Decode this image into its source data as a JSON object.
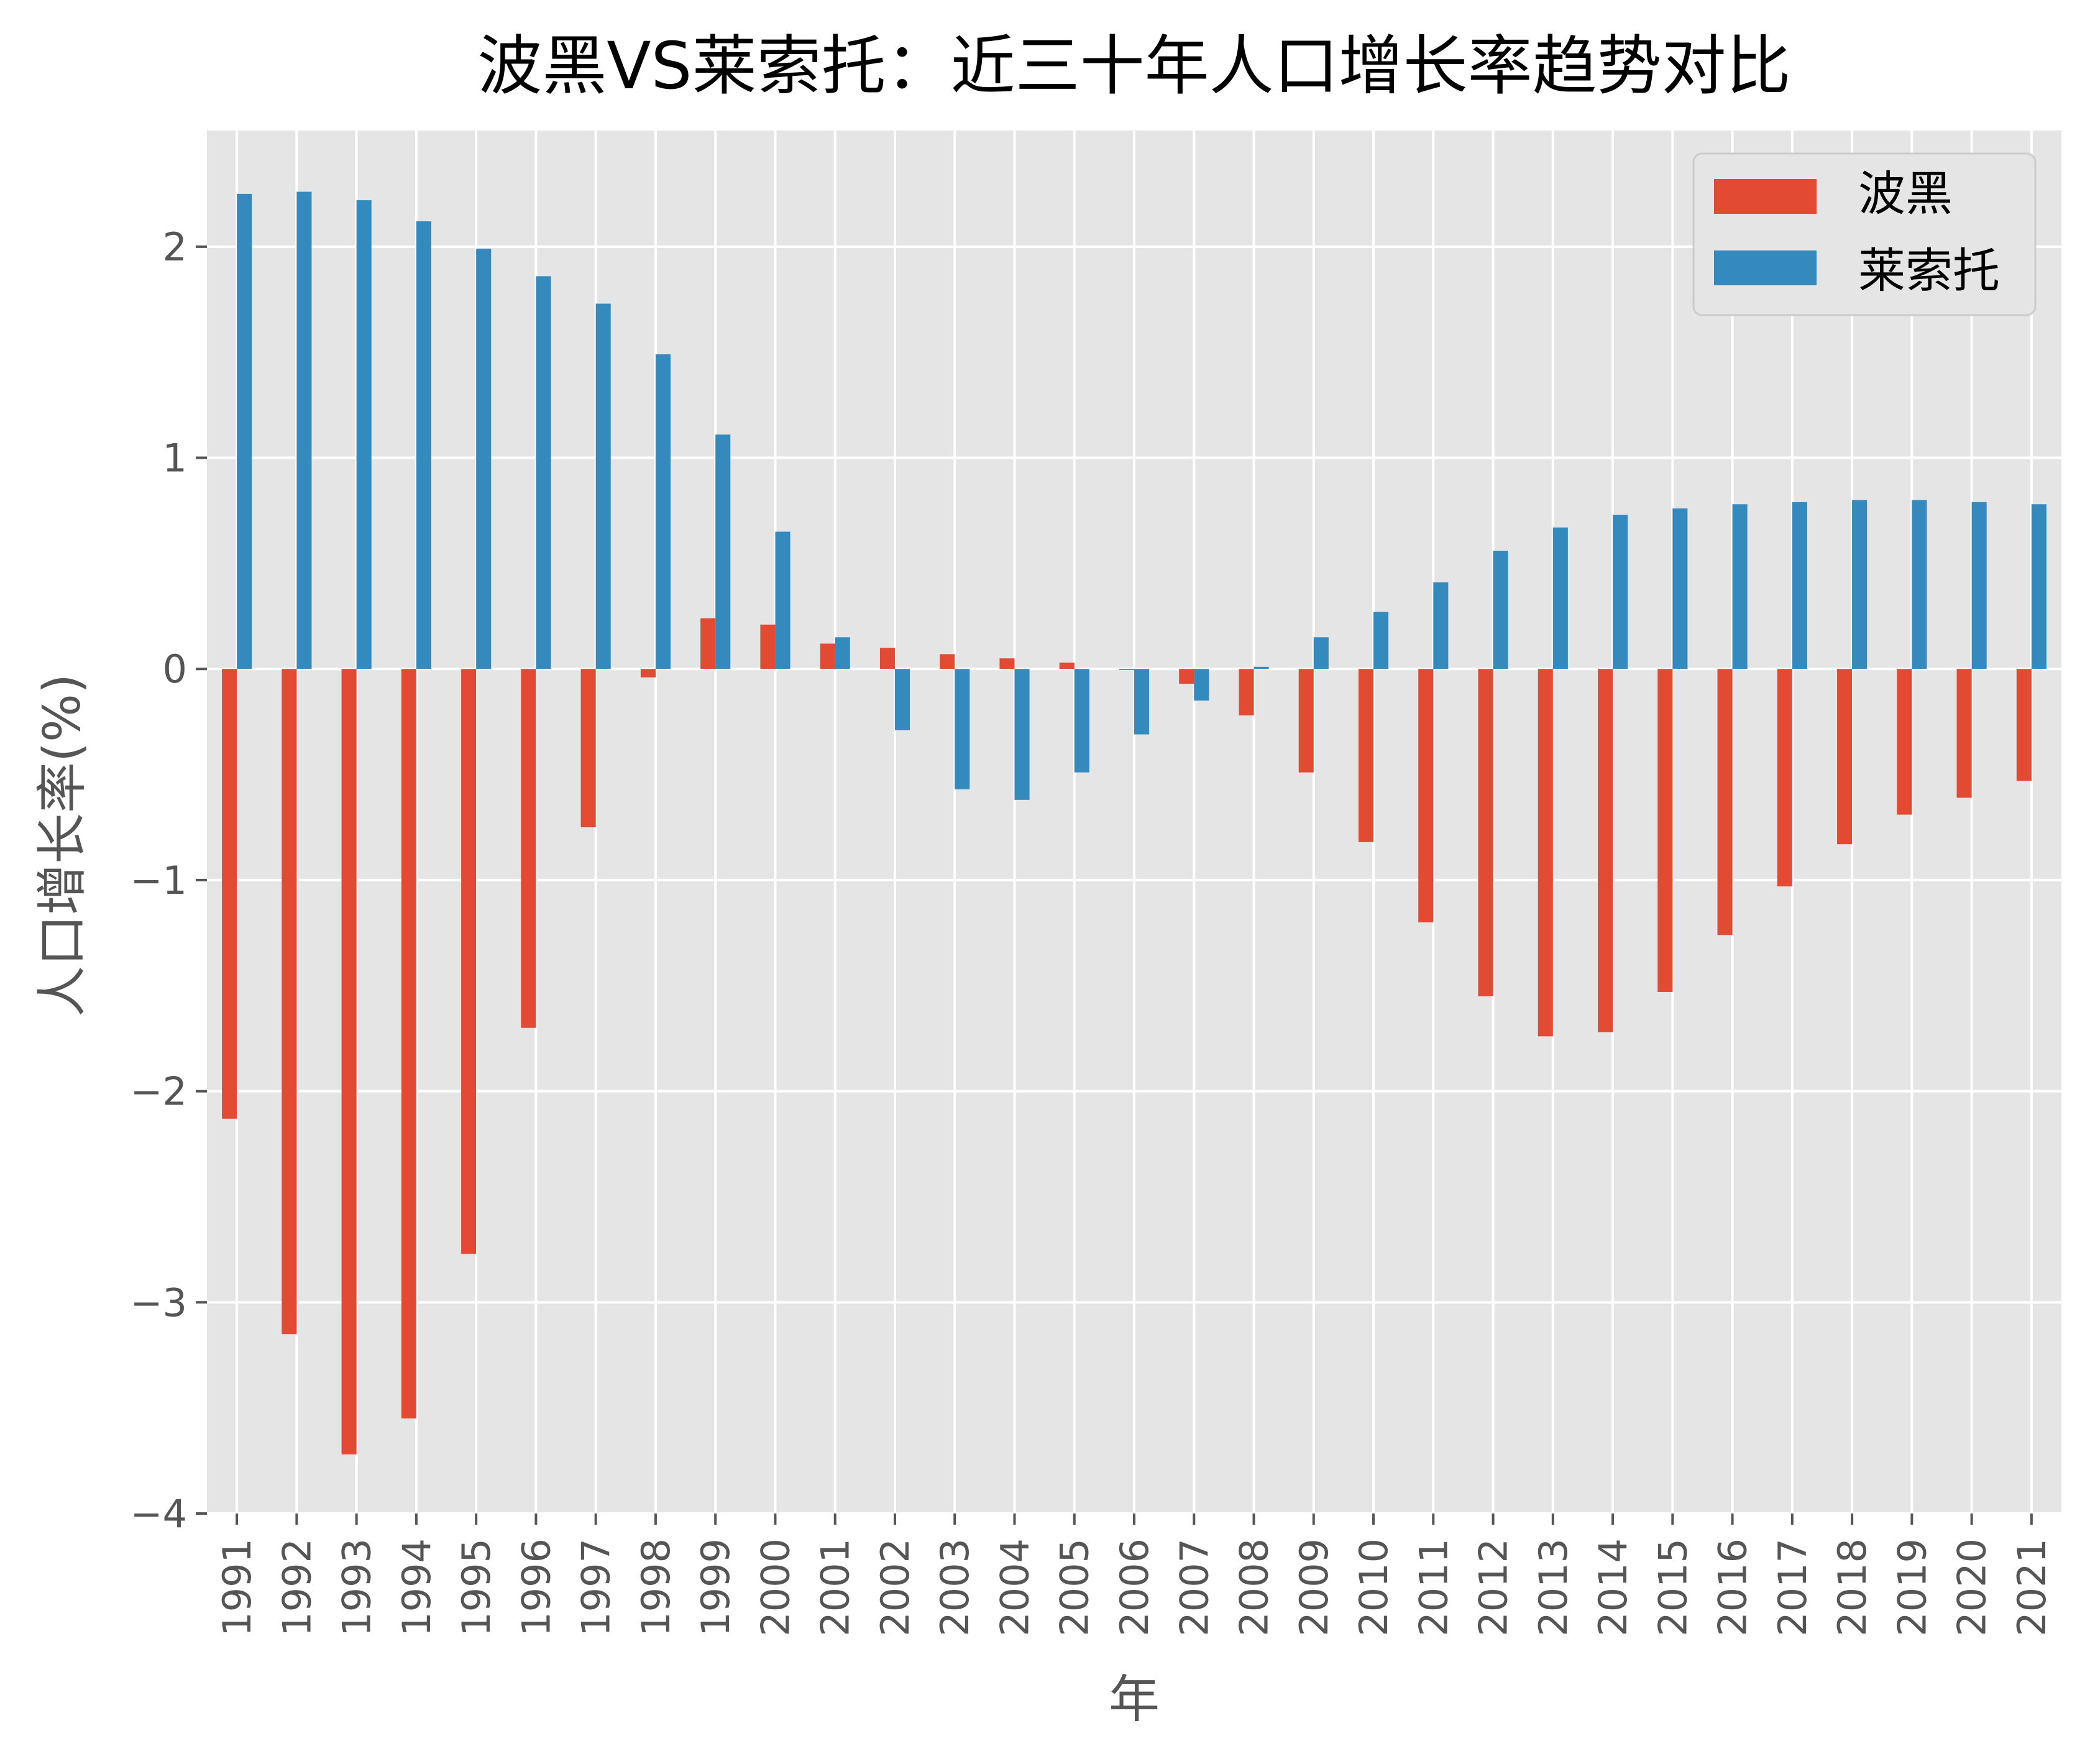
{
  "chart_data": {
    "type": "bar",
    "title": "波黑VS莱索托：近三十年人口增长率趋势对比",
    "xlabel": "年",
    "ylabel": "人口增长率(%)",
    "ylim": [
      -4,
      2.55
    ],
    "yticks": [
      -4,
      -3,
      -2,
      -1,
      0,
      1,
      2
    ],
    "grid": true,
    "legend_position": "top-right",
    "categories": [
      "1991",
      "1992",
      "1993",
      "1994",
      "1995",
      "1996",
      "1997",
      "1998",
      "1999",
      "2000",
      "2001",
      "2002",
      "2003",
      "2004",
      "2005",
      "2006",
      "2007",
      "2008",
      "2009",
      "2010",
      "2011",
      "2012",
      "2013",
      "2014",
      "2015",
      "2016",
      "2017",
      "2018",
      "2019",
      "2020",
      "2021"
    ],
    "series": [
      {
        "name": "波黑",
        "color": "#E24A33",
        "values": [
          -2.13,
          -3.15,
          -3.72,
          -3.55,
          -2.77,
          -1.7,
          -0.75,
          -0.04,
          0.24,
          0.21,
          0.12,
          0.1,
          0.07,
          0.05,
          0.03,
          -0.005,
          -0.07,
          -0.22,
          -0.49,
          -0.82,
          -1.2,
          -1.55,
          -1.74,
          -1.72,
          -1.53,
          -1.26,
          -1.03,
          -0.83,
          -0.69,
          -0.61,
          -0.53
        ]
      },
      {
        "name": "莱索托",
        "color": "#348ABD",
        "values": [
          2.25,
          2.26,
          2.22,
          2.12,
          1.99,
          1.86,
          1.73,
          1.49,
          1.11,
          0.65,
          0.15,
          -0.29,
          -0.57,
          -0.62,
          -0.49,
          -0.31,
          -0.15,
          0.01,
          0.15,
          0.27,
          0.41,
          0.56,
          0.67,
          0.73,
          0.76,
          0.78,
          0.79,
          0.8,
          0.8,
          0.79,
          0.78
        ]
      }
    ]
  }
}
